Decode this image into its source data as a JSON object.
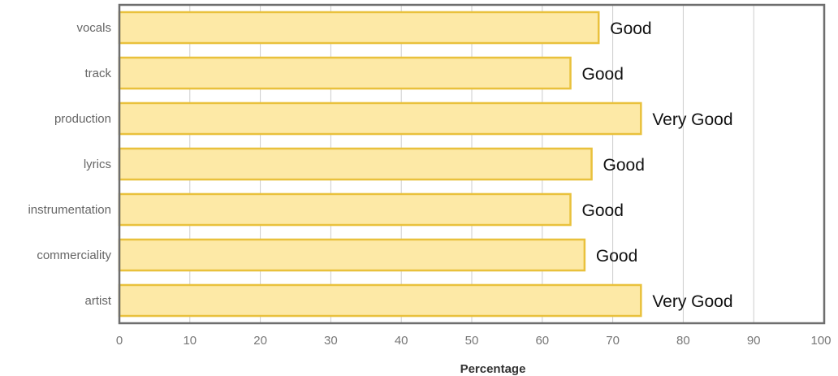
{
  "chart_data": {
    "type": "bar",
    "orientation": "horizontal",
    "categories": [
      "vocals",
      "track",
      "production",
      "lyrics",
      "instrumentation",
      "commerciality",
      "artist"
    ],
    "values": [
      68,
      64,
      74,
      67,
      64,
      66,
      74
    ],
    "data_labels": [
      "Good",
      "Good",
      "Very Good",
      "Good",
      "Good",
      "Good",
      "Very Good"
    ],
    "xlabel": "Percentage",
    "ylabel": "",
    "xlim": [
      0,
      100
    ],
    "xticks": [
      "0",
      "10",
      "20",
      "30",
      "40",
      "50",
      "60",
      "70",
      "80",
      "90",
      "100"
    ],
    "grid": "vertical",
    "colors": {
      "bar_fill": "#fde9a6",
      "bar_stroke": "#e9c13c",
      "grid": "#cccccc",
      "frame": "#6e6e6e"
    }
  }
}
